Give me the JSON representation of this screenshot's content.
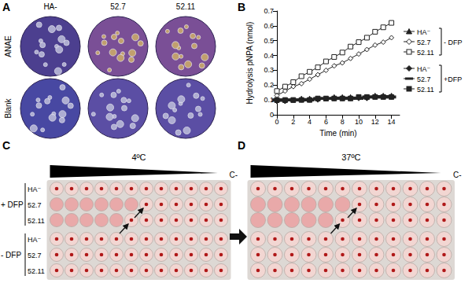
{
  "chart_data": {
    "type": "line",
    "panel_label": "B",
    "x_label": "Time (min)",
    "y_label": "Hydrolysis pNPA (nmol)",
    "x": [
      0,
      1,
      2,
      3,
      4,
      5,
      6,
      7,
      8,
      9,
      10,
      11,
      12,
      13,
      14
    ],
    "xlim": [
      0,
      15
    ],
    "xticks": [
      0,
      2,
      4,
      6,
      8,
      10,
      12,
      14
    ],
    "ylim": [
      0,
      0.7
    ],
    "yticks": [
      0,
      0.1,
      0.2,
      0.3,
      0.4,
      0.5,
      0.6,
      0.7
    ],
    "grid": false,
    "series": [
      {
        "name": "HA⁻",
        "group": "- DFP",
        "color": "#222222",
        "marker": "triangle",
        "line_style": "solid",
        "values": [
          0.1,
          0.1,
          0.1,
          0.11,
          0.11,
          0.11,
          0.11,
          0.12,
          0.12,
          0.12,
          0.12,
          0.12,
          0.13,
          0.13,
          0.13
        ]
      },
      {
        "name": "52.7",
        "group": "- DFP",
        "color": "#222222",
        "marker": "open-diamond",
        "line_style": "solid",
        "values": [
          0.13,
          0.16,
          0.19,
          0.21,
          0.24,
          0.27,
          0.3,
          0.33,
          0.35,
          0.38,
          0.41,
          0.44,
          0.47,
          0.49,
          0.52
        ]
      },
      {
        "name": "52.11",
        "group": "- DFP",
        "color": "#222222",
        "marker": "open-square",
        "line_style": "solid",
        "values": [
          0.16,
          0.19,
          0.22,
          0.26,
          0.29,
          0.32,
          0.36,
          0.39,
          0.42,
          0.46,
          0.49,
          0.52,
          0.56,
          0.59,
          0.62
        ]
      },
      {
        "name": "HA⁻",
        "group": "+DFP",
        "color": "#222222",
        "marker": "diamond",
        "line_style": "solid",
        "values": [
          0.09,
          0.09,
          0.1,
          0.1,
          0.1,
          0.1,
          0.11,
          0.11,
          0.11,
          0.11,
          0.11,
          0.11,
          0.12,
          0.12,
          0.12
        ]
      },
      {
        "name": "52.7",
        "group": "+DFP",
        "color": "#222222",
        "marker": "line",
        "line_style": "solid",
        "values": [
          0.1,
          0.1,
          0.1,
          0.1,
          0.1,
          0.11,
          0.11,
          0.11,
          0.11,
          0.11,
          0.11,
          0.12,
          0.12,
          0.12,
          0.12
        ]
      },
      {
        "name": "52.11",
        "group": "+DFP",
        "color": "#222222",
        "marker": "square",
        "line_style": "solid",
        "values": [
          0.1,
          0.1,
          0.1,
          0.1,
          0.1,
          0.11,
          0.11,
          0.11,
          0.11,
          0.11,
          0.12,
          0.12,
          0.12,
          0.12,
          0.12
        ]
      }
    ]
  },
  "panel_a": {
    "label": "A",
    "columns": [
      "HA-",
      "52.7",
      "52.11"
    ],
    "rows": [
      "ANAE",
      "Blank"
    ]
  },
  "panel_c": {
    "label": "C",
    "temperature": "4ºC",
    "dilution_end": "C-",
    "groups": [
      {
        "label": "+ DFP",
        "rows": [
          "HA⁻",
          "52.7",
          "52.11"
        ]
      },
      {
        "label": "- DFP",
        "rows": [
          "HA⁻",
          "52.7",
          "52.11"
        ]
      }
    ]
  },
  "panel_d": {
    "label": "D",
    "temperature": "37ºC",
    "dilution_end": "C-"
  }
}
